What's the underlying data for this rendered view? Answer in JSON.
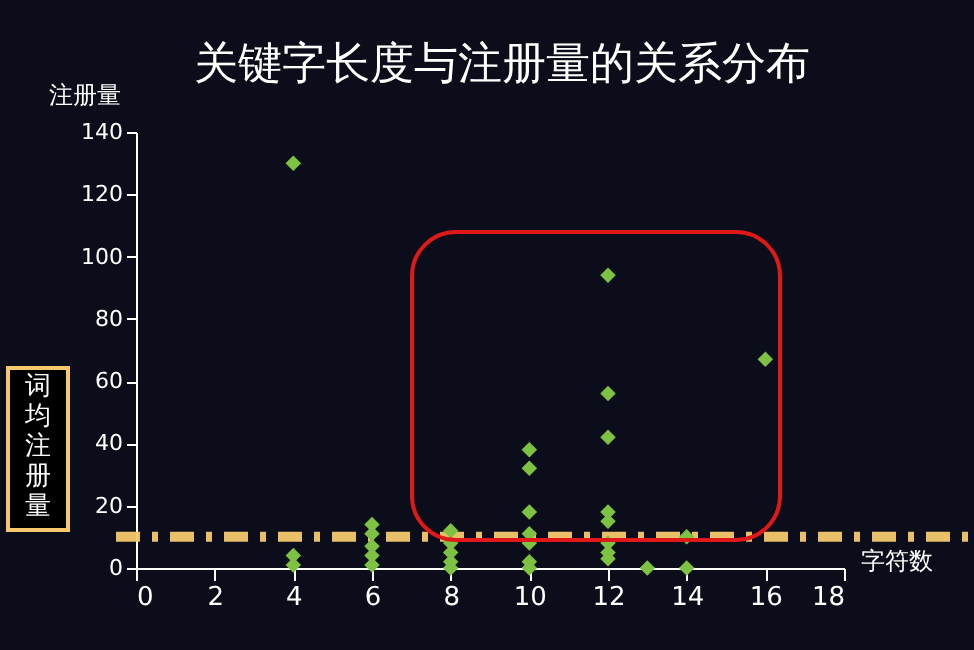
{
  "chart_data": {
    "type": "scatter",
    "title": "关键字长度与注册量的关系分布",
    "xlabel": "字符数",
    "ylabel": "注册量",
    "series": [
      {
        "color": "#7dc242",
        "x": [
          4,
          4,
          4,
          6,
          6,
          6,
          6,
          6,
          8,
          8,
          8,
          8,
          8,
          10,
          10,
          10,
          10,
          10,
          10,
          10,
          12,
          12,
          12,
          12,
          12,
          12,
          12,
          12,
          13,
          14,
          14,
          16
        ],
        "values": [
          130,
          4,
          1,
          14,
          11,
          7,
          4,
          1,
          12,
          8,
          5,
          2,
          0,
          38,
          32,
          18,
          11,
          8,
          2,
          0,
          94,
          56,
          42,
          18,
          15,
          8,
          5,
          3,
          0,
          10,
          0,
          67
        ]
      }
    ],
    "marker": "diamond",
    "grid": false,
    "xlim": [
      0,
      18
    ],
    "xticks": [
      0,
      2,
      4,
      6,
      8,
      10,
      12,
      14,
      16,
      18
    ],
    "ylim": [
      0,
      140
    ],
    "yticks": [
      0,
      20,
      40,
      60,
      80,
      100,
      120,
      140
    ],
    "ref_lines": [
      {
        "axis": "y",
        "value": 10,
        "label": "词均注册量",
        "color": "#f5c96b",
        "line_style": "dashdot"
      }
    ]
  }
}
